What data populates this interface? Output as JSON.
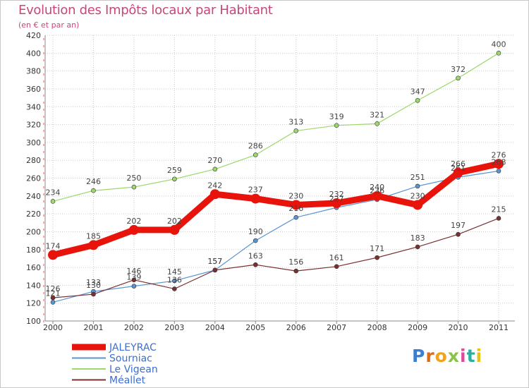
{
  "header": {
    "title": "Evolution des Impôts locaux par Habitant",
    "subtitle": "(en € et par an)"
  },
  "logo": {
    "text": "Proxiti",
    "colors": [
      "#3b7fd1",
      "#e06a1b",
      "#f2a31b",
      "#8bc34a",
      "#e04a9a",
      "#2bb0a0",
      "#e6c21b"
    ]
  },
  "colors": {
    "title": "#c8467a",
    "grid": "#cccccc",
    "axis": "#888888",
    "legend_label": "#3b6fd1"
  },
  "chart_data": {
    "type": "line",
    "title": "Evolution des Impôts locaux par Habitant",
    "subtitle": "(en € et par an)",
    "xlabel": "",
    "ylabel": "",
    "x": [
      "2000",
      "2001",
      "2002",
      "2003",
      "2004",
      "2005",
      "2006",
      "2007",
      "2008",
      "2009",
      "2010",
      "2011"
    ],
    "ylim": [
      100,
      420
    ],
    "yticks": [
      100,
      120,
      140,
      160,
      180,
      200,
      220,
      240,
      260,
      280,
      300,
      320,
      340,
      360,
      380,
      400,
      420
    ],
    "grid": true,
    "legend": "bottom-left",
    "series": [
      {
        "name": "JALEYRAC",
        "color": "#e8140c",
        "emphasis": true,
        "values": [
          174,
          185,
          202,
          202,
          242,
          237,
          230,
          232,
          240,
          230,
          266,
          276
        ],
        "labels": [
          "174",
          "185",
          "202",
          "202",
          "242",
          "237",
          "230",
          "232",
          "240",
          "230",
          "266",
          "276"
        ]
      },
      {
        "name": "Sourniac",
        "color": "#5b95d0",
        "emphasis": false,
        "values": [
          121,
          133,
          139,
          145,
          157,
          190,
          216,
          227,
          236,
          251,
          261,
          268
        ],
        "labels": [
          "121",
          "133",
          "139",
          "145",
          "157",
          "190",
          "216",
          "227",
          "236",
          "251",
          "261",
          "268"
        ]
      },
      {
        "name": "Le Vigean",
        "color": "#9cd86a",
        "emphasis": false,
        "values": [
          234,
          246,
          250,
          259,
          270,
          286,
          313,
          319,
          321,
          347,
          372,
          400
        ],
        "labels": [
          "234",
          "246",
          "250",
          "259",
          "270",
          "286",
          "313",
          "319",
          "321",
          "347",
          "372",
          "400"
        ]
      },
      {
        "name": "Méallet",
        "color": "#7a3030",
        "emphasis": false,
        "values": [
          126,
          130,
          146,
          136,
          157,
          163,
          156,
          161,
          171,
          183,
          197,
          215
        ],
        "labels": [
          "126",
          "130",
          "146",
          "136",
          "157",
          "163",
          "156",
          "161",
          "171",
          "183",
          "197",
          "215"
        ]
      }
    ]
  }
}
